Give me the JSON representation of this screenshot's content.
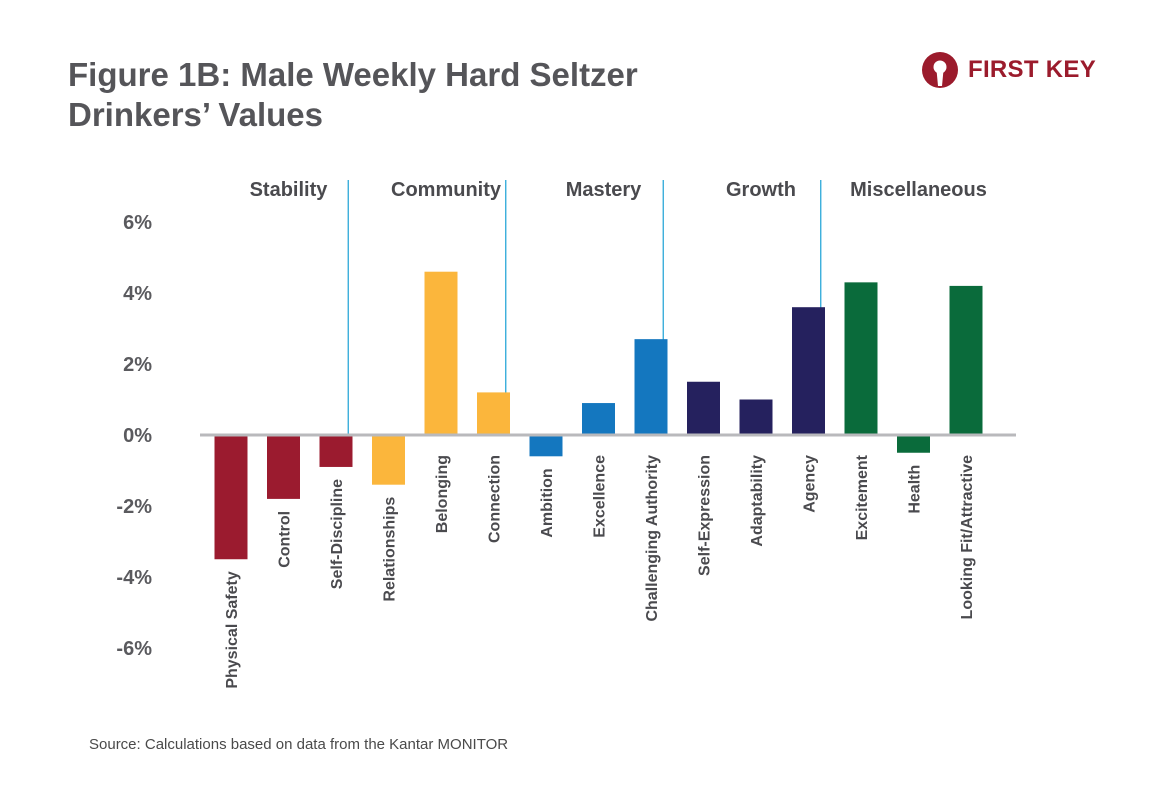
{
  "title": {
    "line1": "Figure 1B: Male Weekly Hard Seltzer",
    "line2": "Drinkers’ Values"
  },
  "brand": {
    "name": "FIRST KEY",
    "logo_icon": "keyhole-logo-icon",
    "color": "#9b1b2c"
  },
  "source": "Source: Calculations based on data from the Kantar MONITOR",
  "chart_data": {
    "type": "bar",
    "title": "Figure 1B: Male Weekly Hard Seltzer Drinkers’ Values",
    "xlabel": "",
    "ylabel": "",
    "ylim": [
      -6,
      6
    ],
    "yticks": [
      6,
      4,
      2,
      0,
      -2,
      -4,
      -6
    ],
    "ytick_labels": [
      "6%",
      "4%",
      "2%",
      "0%",
      "-2%",
      "-4%",
      "-6%"
    ],
    "grid": false,
    "groups": [
      {
        "name": "Stability",
        "color": "#9b1b2f",
        "categories": [
          "Physical Safety",
          "Control",
          "Self-Discipline"
        ],
        "values": [
          -3.5,
          -1.8,
          -0.9
        ]
      },
      {
        "name": "Community",
        "color": "#fbb63c",
        "categories": [
          "Relationships",
          "Belonging",
          "Connection"
        ],
        "values": [
          -1.4,
          4.6,
          1.2
        ]
      },
      {
        "name": "Mastery",
        "color": "#1477bf",
        "categories": [
          "Ambition",
          "Excellence",
          "Challenging Authority"
        ],
        "values": [
          -0.6,
          0.9,
          2.7
        ]
      },
      {
        "name": "Growth",
        "color": "#25215e",
        "categories": [
          "Self-Expression",
          "Adaptability",
          "Agency"
        ],
        "values": [
          1.5,
          1.0,
          3.6
        ]
      },
      {
        "name": "Miscellaneous",
        "color": "#0a6b3b",
        "categories": [
          "Excitement",
          "Health",
          "Looking Fit/Attractive"
        ],
        "values": [
          4.3,
          -0.5,
          4.2
        ]
      }
    ]
  }
}
